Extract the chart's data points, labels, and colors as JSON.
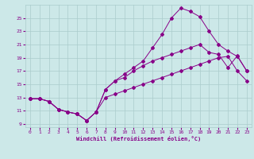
{
  "xlabel": "Windchill (Refroidissement éolien,°C)",
  "bg_color": "#cce8e8",
  "grid_color": "#aacccc",
  "line_color": "#880088",
  "xlim": [
    -0.5,
    23.5
  ],
  "ylim": [
    8.5,
    27
  ],
  "yticks": [
    9,
    11,
    13,
    15,
    17,
    19,
    21,
    23,
    25
  ],
  "xticks": [
    0,
    1,
    2,
    3,
    4,
    5,
    6,
    7,
    8,
    9,
    10,
    11,
    12,
    13,
    14,
    15,
    16,
    17,
    18,
    19,
    20,
    21,
    22,
    23
  ],
  "line1_x": [
    0,
    1,
    2,
    3,
    4,
    5,
    6,
    7,
    8,
    9,
    10,
    11,
    12,
    13,
    14,
    15,
    16,
    17,
    18,
    19,
    20,
    21,
    22,
    23
  ],
  "line1_y": [
    12.8,
    12.8,
    12.4,
    11.2,
    10.8,
    10.5,
    9.5,
    10.8,
    14.2,
    15.5,
    16.5,
    17.5,
    18.5,
    20.5,
    22.5,
    25.0,
    26.5,
    26.0,
    25.2,
    23.0,
    21.0,
    20.0,
    19.2,
    17.0
  ],
  "line2_x": [
    0,
    1,
    2,
    3,
    4,
    5,
    6,
    7,
    8,
    9,
    10,
    11,
    12,
    13,
    14,
    15,
    16,
    17,
    18,
    19,
    20,
    21,
    22,
    23
  ],
  "line2_y": [
    12.8,
    12.8,
    12.4,
    11.2,
    10.8,
    10.5,
    9.5,
    10.8,
    14.2,
    15.5,
    16.0,
    17.0,
    17.8,
    18.5,
    19.0,
    19.5,
    20.0,
    20.5,
    21.0,
    19.8,
    19.5,
    17.5,
    19.3,
    17.0
  ],
  "line3_x": [
    0,
    1,
    2,
    3,
    4,
    5,
    6,
    7,
    8,
    9,
    10,
    11,
    12,
    13,
    14,
    15,
    16,
    17,
    18,
    19,
    20,
    21,
    22,
    23
  ],
  "line3_y": [
    12.8,
    12.8,
    12.4,
    11.2,
    10.8,
    10.5,
    9.5,
    10.8,
    13.0,
    13.5,
    14.0,
    14.5,
    15.0,
    15.5,
    16.0,
    16.5,
    17.0,
    17.5,
    18.0,
    18.5,
    19.0,
    19.2,
    17.0,
    15.5
  ]
}
